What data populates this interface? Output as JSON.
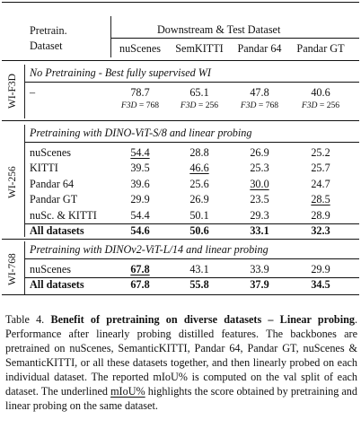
{
  "table": {
    "col_pretrain_line1": "Pretrain.",
    "col_pretrain_line2": "Dataset",
    "col_downstream": "Downstream & Test Dataset",
    "columns": [
      "nuScenes",
      "SemKITTI",
      "Pandar 64",
      "Pandar GT"
    ],
    "groups": [
      {
        "side_label": "WI-F3D",
        "title": "No Pretraining - Best fully supervised WI",
        "rows": [
          {
            "name": "–",
            "values": [
              "78.7",
              "65.1",
              "47.8",
              "40.6"
            ],
            "bold": false,
            "underline": [
              false,
              false,
              false,
              false
            ]
          }
        ],
        "f3d_values": [
          "F3D = 768",
          "F3D = 256",
          "F3D = 768",
          "F3D = 256"
        ]
      },
      {
        "side_label": "WI-256",
        "title": "Pretraining with DINO-ViT-S/8 and linear probing",
        "rows": [
          {
            "name": "nuScenes",
            "values": [
              "54.4",
              "28.8",
              "26.9",
              "25.2"
            ],
            "bold": false,
            "underline": [
              true,
              false,
              false,
              false
            ]
          },
          {
            "name": "KITTI",
            "values": [
              "39.5",
              "46.6",
              "25.3",
              "25.7"
            ],
            "bold": false,
            "underline": [
              false,
              true,
              false,
              false
            ]
          },
          {
            "name": "Pandar 64",
            "values": [
              "39.6",
              "25.6",
              "30.0",
              "24.7"
            ],
            "bold": false,
            "underline": [
              false,
              false,
              true,
              false
            ]
          },
          {
            "name": "Pandar GT",
            "values": [
              "29.9",
              "26.9",
              "23.5",
              "28.5"
            ],
            "bold": false,
            "underline": [
              false,
              false,
              false,
              true
            ]
          },
          {
            "name": "nuSc. & KITTI",
            "values": [
              "54.4",
              "50.1",
              "29.3",
              "28.9"
            ],
            "bold": false,
            "underline": [
              false,
              false,
              false,
              false
            ]
          },
          {
            "name": "All datasets",
            "values": [
              "54.6",
              "50.6",
              "33.1",
              "32.3"
            ],
            "bold": true,
            "underline": [
              false,
              false,
              false,
              false
            ]
          }
        ]
      },
      {
        "side_label": "WI-768",
        "title": "Pretraining with DINOv2-ViT-L/14 and linear probing",
        "rows": [
          {
            "name": "nuScenes",
            "values": [
              "67.8",
              "43.1",
              "33.9",
              "29.9"
            ],
            "bold": false,
            "underline": [
              true,
              false,
              false,
              false
            ],
            "bold_cells": [
              true,
              false,
              false,
              false
            ]
          },
          {
            "name": "All datasets",
            "values": [
              "67.8",
              "55.8",
              "37.9",
              "34.5"
            ],
            "bold": true,
            "underline": [
              false,
              false,
              false,
              false
            ]
          }
        ]
      }
    ]
  },
  "caption": {
    "label": "Table 4.",
    "title": "Benefit of pretraining on diverse datasets – Linear probing",
    "p1": ". Performance after linearly probing distilled features. The backbones are pretrained on nuScenes, SemanticKITTI, Pandar 64, Pandar GT, nuScenes & SemanticKITTI, or all these datasets together, and then linearly probed on each individual dataset. The reported mIoU% is computed on the val split of each dataset. The underlined ",
    "underlined": "mIoU%",
    "p2": " highlights the score obtained by pretraining and linear probing on the same dataset."
  }
}
